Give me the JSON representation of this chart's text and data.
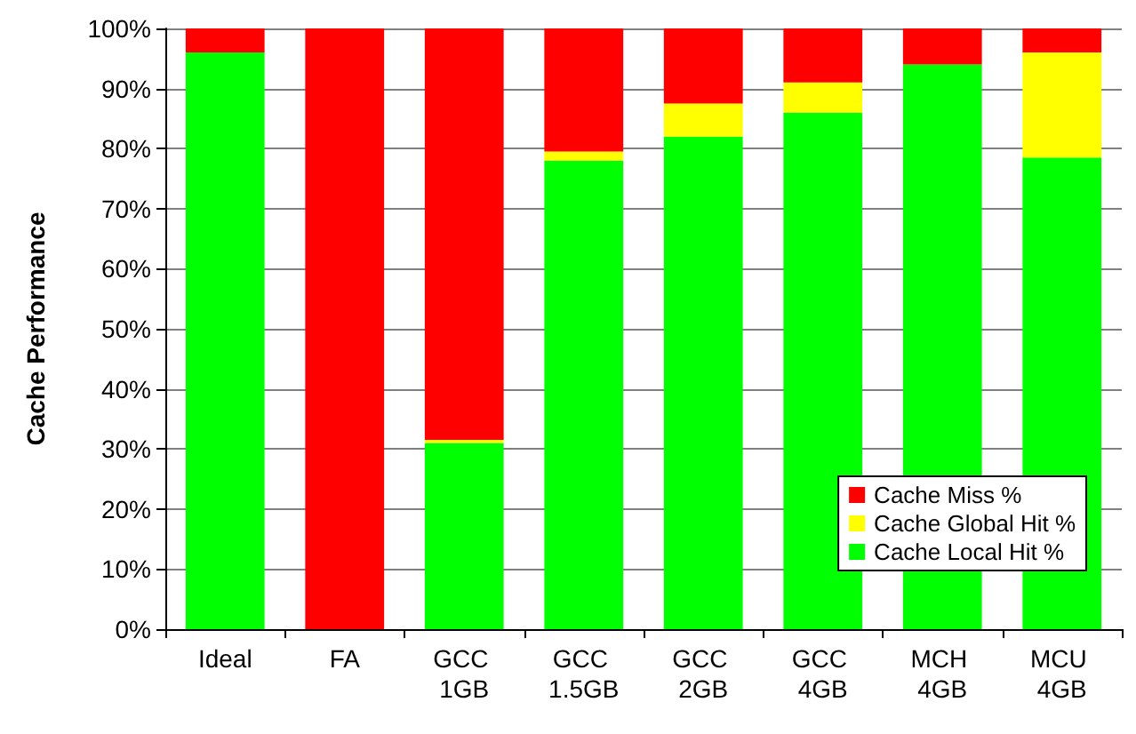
{
  "chart_data": {
    "type": "bar",
    "stacked": true,
    "ylabel": "Cache Performance",
    "categories": [
      "Ideal",
      "FA",
      "GCC 1GB",
      "GCC 1.5GB",
      "GCC 2GB",
      "GCC 4GB",
      "MCH 4GB",
      "MCU 4GB"
    ],
    "series": [
      {
        "name": "Cache Local Hit %",
        "color": "#00ff00",
        "values": [
          96,
          0,
          31,
          78,
          82,
          86,
          94,
          78.5
        ]
      },
      {
        "name": "Cache Global Hit %",
        "color": "#ffff00",
        "values": [
          0,
          0,
          0.5,
          1.5,
          5.5,
          5,
          0,
          17.5
        ]
      },
      {
        "name": "Cache Miss %",
        "color": "#ff0000",
        "values": [
          4,
          100,
          68.5,
          20.5,
          12.5,
          9,
          6,
          4
        ]
      }
    ],
    "ylim": [
      0,
      100
    ],
    "yticks": [
      {
        "value": 0,
        "label": "0%"
      },
      {
        "value": 10,
        "label": "10%"
      },
      {
        "value": 20,
        "label": "20%"
      },
      {
        "value": 30,
        "label": "30%"
      },
      {
        "value": 40,
        "label": "40%"
      },
      {
        "value": 50,
        "label": "50%"
      },
      {
        "value": 60,
        "label": "60%"
      },
      {
        "value": 70,
        "label": "70%"
      },
      {
        "value": 80,
        "label": "80%"
      },
      {
        "value": 90,
        "label": "90%"
      },
      {
        "value": 100,
        "label": "100%"
      }
    ],
    "grid": "y",
    "legend": "bottom right"
  }
}
